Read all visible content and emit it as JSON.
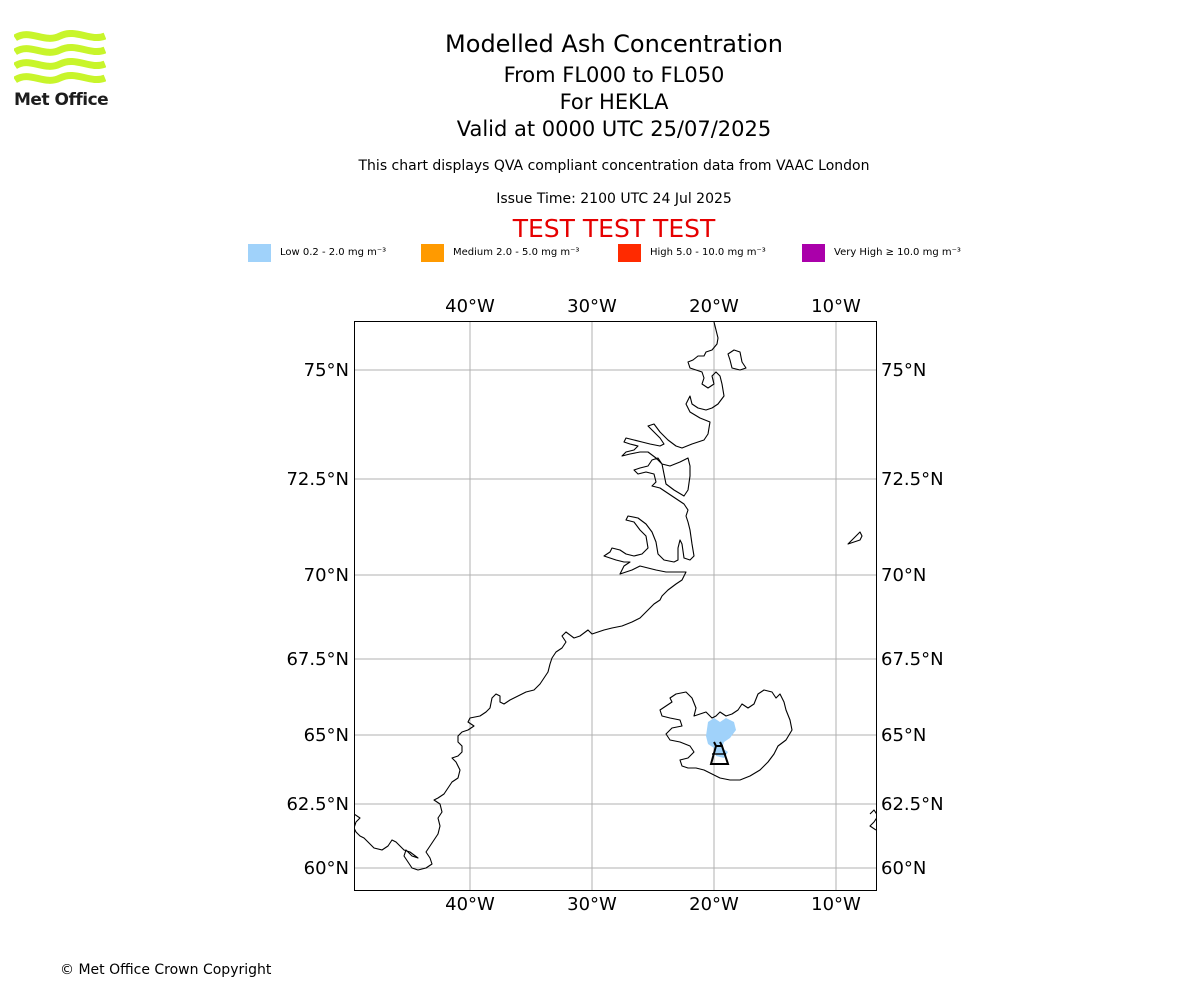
{
  "logo": {
    "text": "Met Office",
    "color": "#c8f52b"
  },
  "header": {
    "title": "Modelled Ash Concentration",
    "level_range": "From FL000 to FL050",
    "volcano_line": "For HEKLA",
    "valid_time": "Valid at 0000 UTC 25/07/2025",
    "description": "This chart displays QVA compliant concentration data from VAAC London",
    "issue_time": "Issue Time: 2100 UTC 24 Jul 2025",
    "test_banner": "TEST TEST TEST",
    "test_color": "#e60000"
  },
  "legend": {
    "unit": "mg m⁻³",
    "items": [
      {
        "label": "Low 0.2 - 2.0",
        "color": "#a0d2fa"
      },
      {
        "label": "Medium 2.0 - 5.0",
        "color": "#ff9a00"
      },
      {
        "label": "High 5.0 - 10.0",
        "color": "#ff2a00"
      },
      {
        "label": "Very High  ≥  10.0",
        "color": "#aa00aa"
      }
    ]
  },
  "map": {
    "longitude_ticks": [
      {
        "value": -40,
        "label": "40°W"
      },
      {
        "value": -30,
        "label": "30°W"
      },
      {
        "value": -20,
        "label": "20°W"
      },
      {
        "value": -10,
        "label": "10°W"
      }
    ],
    "latitude_ticks": [
      {
        "value": 75,
        "label": "75°N"
      },
      {
        "value": 72.5,
        "label": "72.5°N"
      },
      {
        "value": 70,
        "label": "70°N"
      },
      {
        "value": 67.5,
        "label": "67.5°N"
      },
      {
        "value": 65,
        "label": "65°N"
      },
      {
        "value": 62.5,
        "label": "62.5°N"
      },
      {
        "value": 60,
        "label": "60°N"
      }
    ],
    "gridline_color": "#b0b0b0",
    "ash_area_level": "Low",
    "volcano_icon": "volcano-icon"
  },
  "footer": {
    "copyright": "© Met Office Crown Copyright"
  }
}
